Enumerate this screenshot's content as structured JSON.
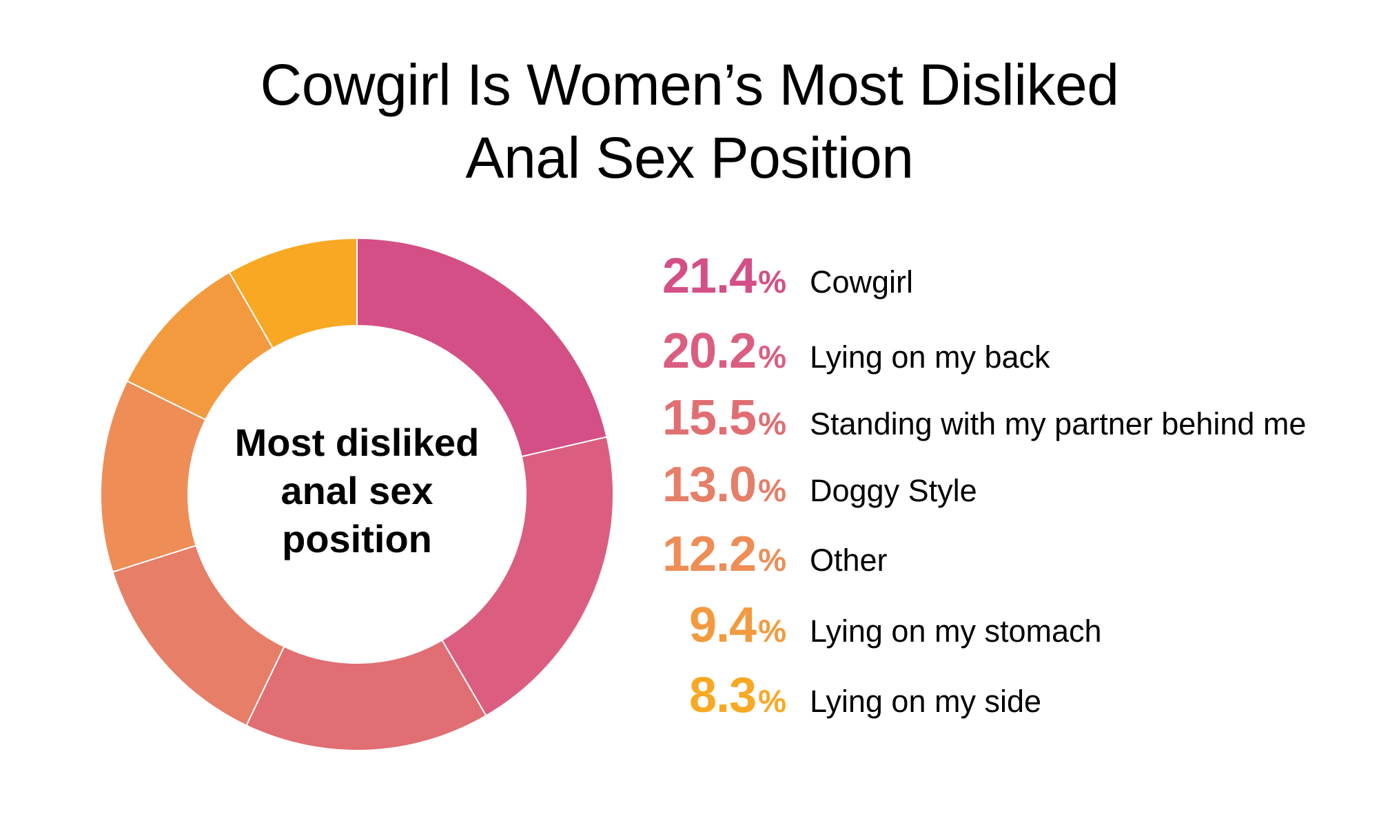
{
  "title": {
    "line1": "Cowgirl Is Women’s Most Disliked",
    "line2": "Anal Sex Position"
  },
  "center_label": {
    "line1": "Most disliked",
    "line2": "anal sex",
    "line3": "position"
  },
  "legend": [
    {
      "value": "21.4",
      "unit": "%",
      "label": "Cowgirl",
      "color": "#D44F86"
    },
    {
      "value": "20.2",
      "unit": "%",
      "label": "Lying on my back",
      "color": "#DB5E80"
    },
    {
      "value": "15.5",
      "unit": "%",
      "label": "Standing with my partner behind me",
      "color": "#E06E72"
    },
    {
      "value": "13.0",
      "unit": "%",
      "label": "Doggy Style",
      "color": "#E67E68"
    },
    {
      "value": "12.2",
      "unit": "%",
      "label": "Other",
      "color": "#EE8D55"
    },
    {
      "value": "9.4",
      "unit": "%",
      "label": "Lying on my stomach",
      "color": "#F39A3E"
    },
    {
      "value": "8.3",
      "unit": "%",
      "label": "Lying on my side",
      "color": "#F9A823"
    }
  ],
  "chart_data": {
    "type": "pie",
    "subtype": "donut",
    "title": "Cowgirl Is Women’s Most Disliked Anal Sex Position",
    "center_text": "Most disliked anal sex position",
    "categories": [
      "Cowgirl",
      "Lying on my back",
      "Standing with my partner behind me",
      "Doggy Style",
      "Other",
      "Lying on my stomach",
      "Lying on my side"
    ],
    "values": [
      21.4,
      20.2,
      15.5,
      13.0,
      12.2,
      9.4,
      8.3
    ],
    "colors": [
      "#D44F86",
      "#DB5E80",
      "#E06E72",
      "#E67E68",
      "#EE8D55",
      "#F39A3E",
      "#F9A823"
    ],
    "unit": "%",
    "start_angle": "top (12 o'clock)",
    "direction": "clockwise",
    "legend_position": "right"
  }
}
